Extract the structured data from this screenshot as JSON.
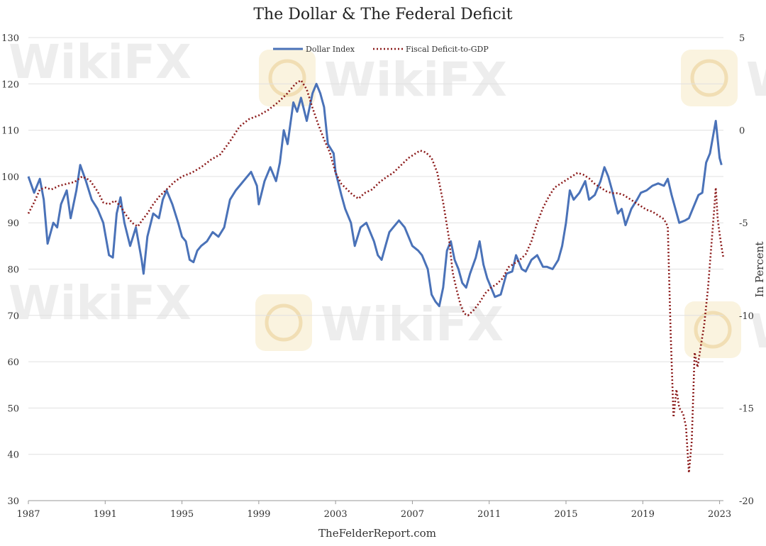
{
  "chart_data": {
    "type": "line",
    "title": "The Dollar & The Federal Deficit",
    "source": "TheFelderReport.com",
    "y2label": "In Percent",
    "x_ticks": [
      "1987",
      "1991",
      "1995",
      "1999",
      "2003",
      "2007",
      "2011",
      "2015",
      "2019",
      "2023"
    ],
    "xlim": [
      1987,
      2023.2
    ],
    "ylim_left": [
      30,
      130
    ],
    "yticks_left": [
      30,
      40,
      50,
      60,
      70,
      80,
      90,
      100,
      110,
      120,
      130
    ],
    "ylim_right": [
      -20,
      5
    ],
    "yticks_right": [
      -20,
      -15,
      -10,
      -5,
      0,
      5
    ],
    "grid": "horizontal",
    "legend_position": "top-center",
    "colors": {
      "dollar": "#4a72b8",
      "deficit": "#8b1a1a",
      "grid": "#e0e0e0"
    },
    "series": [
      {
        "name": "Dollar Index",
        "axis": "left",
        "style": "solid",
        "points": [
          [
            1987.0,
            100
          ],
          [
            1987.3,
            96.5
          ],
          [
            1987.6,
            99.5
          ],
          [
            1987.8,
            95
          ],
          [
            1988.0,
            85.5
          ],
          [
            1988.3,
            90
          ],
          [
            1988.5,
            89
          ],
          [
            1988.7,
            94
          ],
          [
            1989.0,
            97
          ],
          [
            1989.2,
            91
          ],
          [
            1989.5,
            97
          ],
          [
            1989.7,
            102.5
          ],
          [
            1990.0,
            99
          ],
          [
            1990.3,
            95
          ],
          [
            1990.6,
            93
          ],
          [
            1990.9,
            90
          ],
          [
            1991.2,
            83
          ],
          [
            1991.4,
            82.5
          ],
          [
            1991.6,
            92
          ],
          [
            1991.8,
            95.5
          ],
          [
            1992.0,
            90
          ],
          [
            1992.3,
            85
          ],
          [
            1992.6,
            89
          ],
          [
            1992.9,
            82
          ],
          [
            1993.0,
            79
          ],
          [
            1993.2,
            87
          ],
          [
            1993.5,
            92
          ],
          [
            1993.8,
            91
          ],
          [
            1994.0,
            95
          ],
          [
            1994.2,
            97
          ],
          [
            1994.5,
            94
          ],
          [
            1994.8,
            90
          ],
          [
            1995.0,
            87
          ],
          [
            1995.2,
            86
          ],
          [
            1995.4,
            82
          ],
          [
            1995.6,
            81.5
          ],
          [
            1995.8,
            84
          ],
          [
            1996.0,
            85
          ],
          [
            1996.3,
            86
          ],
          [
            1996.6,
            88
          ],
          [
            1996.9,
            87
          ],
          [
            1997.2,
            89
          ],
          [
            1997.5,
            95
          ],
          [
            1997.8,
            97
          ],
          [
            1998.0,
            98
          ],
          [
            1998.3,
            99.5
          ],
          [
            1998.6,
            101
          ],
          [
            1998.9,
            98
          ],
          [
            1999.0,
            94
          ],
          [
            1999.3,
            99
          ],
          [
            1999.6,
            102
          ],
          [
            1999.9,
            99
          ],
          [
            2000.1,
            103
          ],
          [
            2000.3,
            110
          ],
          [
            2000.5,
            107
          ],
          [
            2000.8,
            116
          ],
          [
            2001.0,
            114
          ],
          [
            2001.2,
            117
          ],
          [
            2001.5,
            112
          ],
          [
            2001.8,
            118
          ],
          [
            2002.0,
            120
          ],
          [
            2002.2,
            118
          ],
          [
            2002.4,
            115
          ],
          [
            2002.6,
            107
          ],
          [
            2002.9,
            105
          ],
          [
            2003.0,
            101
          ],
          [
            2003.3,
            96
          ],
          [
            2003.5,
            93
          ],
          [
            2003.8,
            90
          ],
          [
            2004.0,
            85
          ],
          [
            2004.3,
            89
          ],
          [
            2004.6,
            90
          ],
          [
            2004.9,
            87
          ],
          [
            2005.0,
            86
          ],
          [
            2005.2,
            83
          ],
          [
            2005.4,
            82
          ],
          [
            2005.6,
            85
          ],
          [
            2005.8,
            88
          ],
          [
            2006.0,
            89
          ],
          [
            2006.3,
            90.5
          ],
          [
            2006.6,
            89
          ],
          [
            2006.9,
            86
          ],
          [
            2007.0,
            85
          ],
          [
            2007.3,
            84
          ],
          [
            2007.5,
            83
          ],
          [
            2007.8,
            80
          ],
          [
            2008.0,
            74.5
          ],
          [
            2008.2,
            73
          ],
          [
            2008.4,
            72
          ],
          [
            2008.6,
            76
          ],
          [
            2008.8,
            84
          ],
          [
            2009.0,
            86
          ],
          [
            2009.2,
            82
          ],
          [
            2009.4,
            80
          ],
          [
            2009.6,
            77
          ],
          [
            2009.8,
            76
          ],
          [
            2010.0,
            79
          ],
          [
            2010.3,
            82.5
          ],
          [
            2010.5,
            86
          ],
          [
            2010.7,
            81
          ],
          [
            2010.9,
            78
          ],
          [
            2011.0,
            77
          ],
          [
            2011.3,
            74
          ],
          [
            2011.6,
            74.5
          ],
          [
            2011.9,
            79
          ],
          [
            2012.2,
            79.5
          ],
          [
            2012.4,
            83
          ],
          [
            2012.7,
            80
          ],
          [
            2012.9,
            79.5
          ],
          [
            2013.2,
            82
          ],
          [
            2013.5,
            83
          ],
          [
            2013.8,
            80.5
          ],
          [
            2014.0,
            80.5
          ],
          [
            2014.3,
            80
          ],
          [
            2014.6,
            82
          ],
          [
            2014.8,
            85
          ],
          [
            2015.0,
            90
          ],
          [
            2015.2,
            97
          ],
          [
            2015.4,
            95
          ],
          [
            2015.7,
            96.5
          ],
          [
            2016.0,
            99
          ],
          [
            2016.2,
            95
          ],
          [
            2016.5,
            96
          ],
          [
            2016.8,
            99
          ],
          [
            2017.0,
            102
          ],
          [
            2017.2,
            100
          ],
          [
            2017.4,
            97
          ],
          [
            2017.7,
            92
          ],
          [
            2017.9,
            93
          ],
          [
            2018.1,
            89.5
          ],
          [
            2018.4,
            93
          ],
          [
            2018.7,
            95
          ],
          [
            2018.9,
            96.5
          ],
          [
            2019.2,
            97
          ],
          [
            2019.5,
            98
          ],
          [
            2019.8,
            98.5
          ],
          [
            2020.1,
            98
          ],
          [
            2020.3,
            99.5
          ],
          [
            2020.5,
            96
          ],
          [
            2020.7,
            93
          ],
          [
            2020.9,
            90
          ],
          [
            2021.2,
            90.5
          ],
          [
            2021.4,
            91
          ],
          [
            2021.6,
            93
          ],
          [
            2021.9,
            96
          ],
          [
            2022.1,
            96.5
          ],
          [
            2022.3,
            103
          ],
          [
            2022.5,
            105
          ],
          [
            2022.8,
            112
          ],
          [
            2022.9,
            108
          ],
          [
            2023.0,
            104
          ],
          [
            2023.1,
            102.5
          ]
        ]
      },
      {
        "name": "Fiscal Deficit-to-GDP",
        "axis": "right",
        "style": "dotted",
        "points": [
          [
            1987.0,
            -4.5
          ],
          [
            1987.3,
            -3.9
          ],
          [
            1987.6,
            -3.2
          ],
          [
            1987.9,
            -3.1
          ],
          [
            1988.2,
            -3.2
          ],
          [
            1988.6,
            -3.0
          ],
          [
            1989.0,
            -2.9
          ],
          [
            1989.4,
            -2.8
          ],
          [
            1989.8,
            -2.5
          ],
          [
            1990.2,
            -2.7
          ],
          [
            1990.6,
            -3.3
          ],
          [
            1990.9,
            -3.9
          ],
          [
            1991.2,
            -4.0
          ],
          [
            1991.5,
            -3.8
          ],
          [
            1991.8,
            -4.1
          ],
          [
            1992.1,
            -4.6
          ],
          [
            1992.4,
            -5.0
          ],
          [
            1992.7,
            -5.2
          ],
          [
            1992.9,
            -4.9
          ],
          [
            1993.2,
            -4.5
          ],
          [
            1993.5,
            -4.0
          ],
          [
            1993.8,
            -3.6
          ],
          [
            1994.2,
            -3.2
          ],
          [
            1994.6,
            -2.8
          ],
          [
            1995.0,
            -2.5
          ],
          [
            1995.5,
            -2.3
          ],
          [
            1996.0,
            -2.0
          ],
          [
            1996.5,
            -1.6
          ],
          [
            1997.0,
            -1.3
          ],
          [
            1997.5,
            -0.6
          ],
          [
            1998.0,
            0.2
          ],
          [
            1998.5,
            0.6
          ],
          [
            1999.0,
            0.8
          ],
          [
            1999.5,
            1.1
          ],
          [
            2000.0,
            1.5
          ],
          [
            2000.5,
            2.0
          ],
          [
            2000.9,
            2.5
          ],
          [
            2001.2,
            2.7
          ],
          [
            2001.5,
            2.2
          ],
          [
            2001.8,
            1.2
          ],
          [
            2002.1,
            0.3
          ],
          [
            2002.4,
            -0.5
          ],
          [
            2002.7,
            -1.2
          ],
          [
            2003.0,
            -2.3
          ],
          [
            2003.3,
            -2.9
          ],
          [
            2003.6,
            -3.2
          ],
          [
            2003.9,
            -3.5
          ],
          [
            2004.2,
            -3.7
          ],
          [
            2004.5,
            -3.4
          ],
          [
            2004.9,
            -3.2
          ],
          [
            2005.3,
            -2.8
          ],
          [
            2005.7,
            -2.5
          ],
          [
            2006.0,
            -2.3
          ],
          [
            2006.4,
            -1.9
          ],
          [
            2006.8,
            -1.5
          ],
          [
            2007.1,
            -1.3
          ],
          [
            2007.4,
            -1.1
          ],
          [
            2007.7,
            -1.2
          ],
          [
            2008.0,
            -1.5
          ],
          [
            2008.3,
            -2.3
          ],
          [
            2008.6,
            -3.9
          ],
          [
            2008.9,
            -5.8
          ],
          [
            2009.1,
            -7.7
          ],
          [
            2009.3,
            -8.6
          ],
          [
            2009.5,
            -9.4
          ],
          [
            2009.7,
            -9.9
          ],
          [
            2009.9,
            -10.0
          ],
          [
            2010.2,
            -9.7
          ],
          [
            2010.5,
            -9.3
          ],
          [
            2010.8,
            -8.8
          ],
          [
            2011.1,
            -8.5
          ],
          [
            2011.4,
            -8.3
          ],
          [
            2011.7,
            -8.0
          ],
          [
            2012.0,
            -7.4
          ],
          [
            2012.3,
            -7.2
          ],
          [
            2012.6,
            -7.0
          ],
          [
            2012.9,
            -6.7
          ],
          [
            2013.2,
            -6.0
          ],
          [
            2013.5,
            -5.0
          ],
          [
            2013.8,
            -4.2
          ],
          [
            2014.1,
            -3.6
          ],
          [
            2014.4,
            -3.1
          ],
          [
            2014.7,
            -2.9
          ],
          [
            2015.0,
            -2.7
          ],
          [
            2015.3,
            -2.5
          ],
          [
            2015.6,
            -2.3
          ],
          [
            2015.9,
            -2.4
          ],
          [
            2016.2,
            -2.6
          ],
          [
            2016.5,
            -2.9
          ],
          [
            2016.8,
            -3.1
          ],
          [
            2017.1,
            -3.3
          ],
          [
            2017.4,
            -3.4
          ],
          [
            2017.7,
            -3.4
          ],
          [
            2018.0,
            -3.5
          ],
          [
            2018.3,
            -3.7
          ],
          [
            2018.6,
            -3.9
          ],
          [
            2018.9,
            -4.1
          ],
          [
            2019.2,
            -4.3
          ],
          [
            2019.5,
            -4.4
          ],
          [
            2019.8,
            -4.6
          ],
          [
            2020.1,
            -4.8
          ],
          [
            2020.3,
            -5.2
          ],
          [
            2020.45,
            -11.0
          ],
          [
            2020.6,
            -15.5
          ],
          [
            2020.75,
            -14.0
          ],
          [
            2020.9,
            -15.0
          ],
          [
            2021.1,
            -15.3
          ],
          [
            2021.25,
            -16.0
          ],
          [
            2021.4,
            -18.5
          ],
          [
            2021.55,
            -16.8
          ],
          [
            2021.7,
            -12.0
          ],
          [
            2021.85,
            -12.8
          ],
          [
            2022.0,
            -11.8
          ],
          [
            2022.2,
            -10.5
          ],
          [
            2022.4,
            -8.5
          ],
          [
            2022.55,
            -6.5
          ],
          [
            2022.7,
            -4.5
          ],
          [
            2022.8,
            -3.1
          ],
          [
            2022.9,
            -4.8
          ],
          [
            2023.0,
            -5.6
          ],
          [
            2023.1,
            -6.3
          ],
          [
            2023.2,
            -6.9
          ]
        ]
      }
    ]
  },
  "watermark": {
    "text": "WikiFX"
  }
}
